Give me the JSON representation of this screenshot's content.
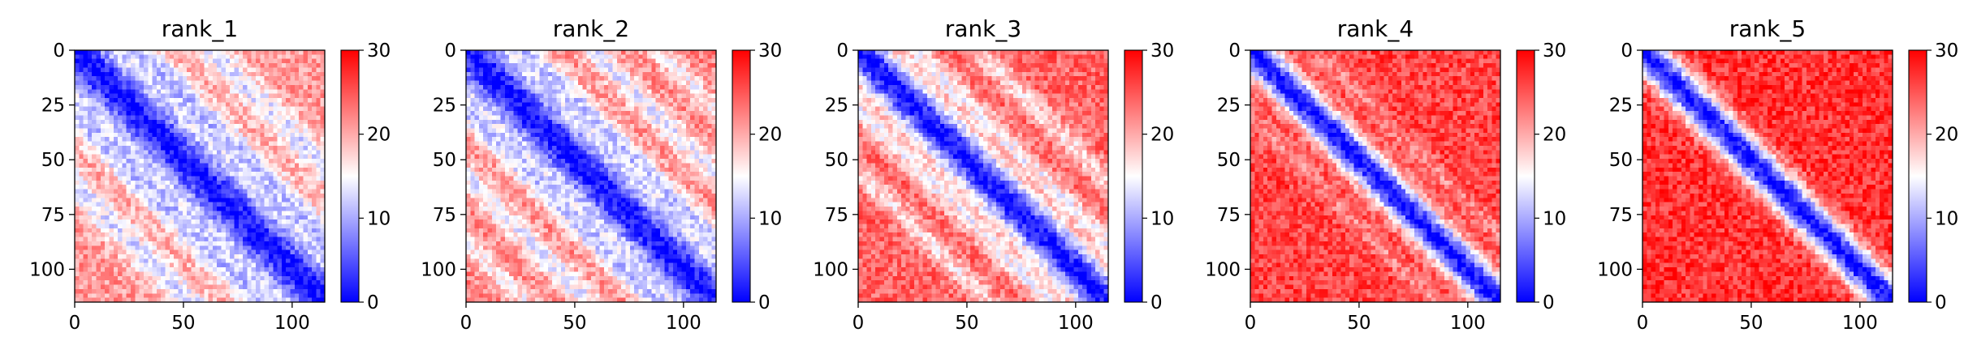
{
  "chart_data": [
    {
      "type": "heatmap",
      "title": "rank_1",
      "n": 115,
      "xlim": [
        0,
        115
      ],
      "ylim": [
        115,
        0
      ],
      "x_ticks": [
        0,
        50,
        100
      ],
      "y_ticks": [
        0,
        25,
        50,
        75,
        100
      ],
      "colorbar": {
        "min": 0,
        "max": 30,
        "ticks": [
          0,
          10,
          20,
          30
        ],
        "colormap": [
          "#0000ff",
          "#ffffff",
          "#ff0000"
        ]
      },
      "diagonal_band_width": 12,
      "background_level": 21,
      "low_bands": [
        {
          "offset": 30,
          "width": 7,
          "depth": 9
        },
        {
          "offset": 62,
          "width": 7,
          "depth": 8
        }
      ]
    },
    {
      "type": "heatmap",
      "title": "rank_2",
      "n": 115,
      "xlim": [
        0,
        115
      ],
      "ylim": [
        115,
        0
      ],
      "x_ticks": [
        0,
        50,
        100
      ],
      "y_ticks": [
        0,
        25,
        50,
        75,
        100
      ],
      "colorbar": {
        "min": 0,
        "max": 30,
        "ticks": [
          0,
          10,
          20,
          30
        ],
        "colormap": [
          "#0000ff",
          "#ffffff",
          "#ff0000"
        ]
      },
      "diagonal_band_width": 12,
      "background_level": 22,
      "low_bands": [
        {
          "offset": 28,
          "width": 6,
          "depth": 9
        },
        {
          "offset": 58,
          "width": 6,
          "depth": 8
        },
        {
          "offset": 88,
          "width": 5,
          "depth": 6
        }
      ]
    },
    {
      "type": "heatmap",
      "title": "rank_3",
      "n": 115,
      "xlim": [
        0,
        115
      ],
      "ylim": [
        115,
        0
      ],
      "x_ticks": [
        0,
        50,
        100
      ],
      "y_ticks": [
        0,
        25,
        50,
        75,
        100
      ],
      "colorbar": {
        "min": 0,
        "max": 30,
        "ticks": [
          0,
          10,
          20,
          30
        ],
        "colormap": [
          "#0000ff",
          "#ffffff",
          "#ff0000"
        ]
      },
      "diagonal_band_width": 10,
      "background_level": 24,
      "low_bands": [
        {
          "offset": 27,
          "width": 5,
          "depth": 8
        },
        {
          "offset": 55,
          "width": 5,
          "depth": 7
        }
      ]
    },
    {
      "type": "heatmap",
      "title": "rank_4",
      "n": 115,
      "xlim": [
        0,
        115
      ],
      "ylim": [
        115,
        0
      ],
      "x_ticks": [
        0,
        50,
        100
      ],
      "y_ticks": [
        0,
        25,
        50,
        75,
        100
      ],
      "colorbar": {
        "min": 0,
        "max": 30,
        "ticks": [
          0,
          10,
          20,
          30
        ],
        "colormap": [
          "#0000ff",
          "#ffffff",
          "#ff0000"
        ]
      },
      "diagonal_band_width": 8,
      "background_level": 26,
      "low_bands": [
        {
          "offset": 30,
          "width": 4,
          "depth": 4
        }
      ]
    },
    {
      "type": "heatmap",
      "title": "rank_5",
      "n": 115,
      "xlim": [
        0,
        115
      ],
      "ylim": [
        115,
        0
      ],
      "x_ticks": [
        0,
        50,
        100
      ],
      "y_ticks": [
        0,
        25,
        50,
        75,
        100
      ],
      "colorbar": {
        "min": 0,
        "max": 30,
        "ticks": [
          0,
          10,
          20,
          30
        ],
        "colormap": [
          "#0000ff",
          "#ffffff",
          "#ff0000"
        ]
      },
      "diagonal_band_width": 8,
      "background_level": 27,
      "low_bands": []
    }
  ]
}
